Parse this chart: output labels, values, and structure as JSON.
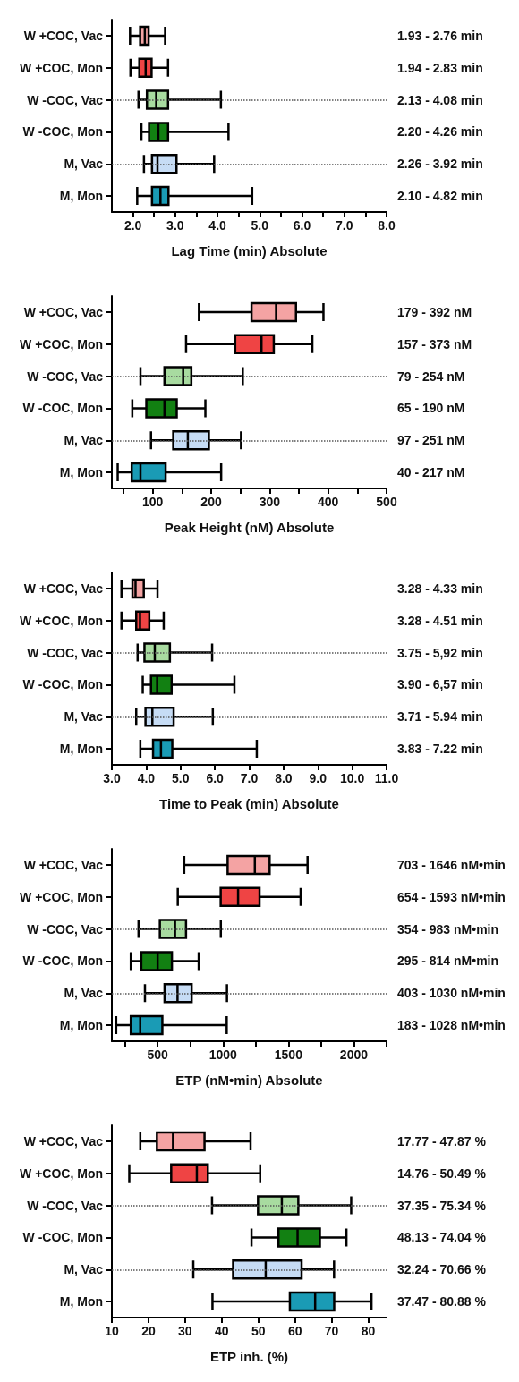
{
  "chart_data": [
    {
      "type": "box",
      "orientation": "horizontal",
      "xlabel": "Lag Time (min) Absolute",
      "categories": [
        "W +COC, Vac",
        "W +COC, Mon",
        "W -COC, Vac",
        "W -COC, Mon",
        "M, Vac",
        "M, Mon"
      ],
      "colors": [
        "#f4a3a3",
        "#ef4444",
        "#a8dba0",
        "#128012",
        "#c6dcf5",
        "#1a9bb5"
      ],
      "boxes": [
        {
          "low": 1.93,
          "q1": 2.17,
          "median": 2.28,
          "q3": 2.37,
          "high": 2.76
        },
        {
          "low": 1.94,
          "q1": 2.15,
          "median": 2.3,
          "q3": 2.44,
          "high": 2.83
        },
        {
          "low": 2.13,
          "q1": 2.33,
          "median": 2.55,
          "q3": 2.83,
          "high": 4.08
        },
        {
          "low": 2.2,
          "q1": 2.38,
          "median": 2.6,
          "q3": 2.83,
          "high": 4.26
        },
        {
          "low": 2.26,
          "q1": 2.45,
          "median": 2.58,
          "q3": 3.03,
          "high": 3.92
        },
        {
          "low": 2.1,
          "q1": 2.45,
          "median": 2.65,
          "q3": 2.84,
          "high": 4.82
        }
      ],
      "value_labels": [
        "1.93 - 2.76 min",
        "1.94 - 2.83 min",
        "2.13 - 4.08 min",
        "2.20 - 4.26 min",
        "2.26 - 3.92 min",
        "2.10 - 4.82 min"
      ],
      "xlim": [
        1.5,
        8
      ],
      "xticks": [
        {
          "value": 2,
          "label": "2.0"
        },
        {
          "value": 2.5,
          "label": null
        },
        {
          "value": 3,
          "label": "3.0"
        },
        {
          "value": 3.5,
          "label": null
        },
        {
          "value": 4,
          "label": "4.0"
        },
        {
          "value": 4.5,
          "label": null
        },
        {
          "value": 5,
          "label": "5.0"
        },
        {
          "value": 5.5,
          "label": null
        },
        {
          "value": 6,
          "label": "6.0"
        },
        {
          "value": 6.5,
          "label": null
        },
        {
          "value": 7,
          "label": "7.0"
        },
        {
          "value": 7.5,
          "label": null
        },
        {
          "value": 8,
          "label": "8.0"
        }
      ]
    },
    {
      "type": "box",
      "orientation": "horizontal",
      "xlabel": "Peak Height (nM) Absolute",
      "categories": [
        "W +COC, Vac",
        "W +COC, Mon",
        "W -COC, Vac",
        "W -COC, Mon",
        "M, Vac",
        "M, Mon"
      ],
      "colors": [
        "#f4a3a3",
        "#ef4444",
        "#a8dba0",
        "#128012",
        "#c6dcf5",
        "#1a9bb5"
      ],
      "boxes": [
        {
          "low": 179,
          "q1": 269,
          "median": 311,
          "q3": 345,
          "high": 392
        },
        {
          "low": 157,
          "q1": 241,
          "median": 286,
          "q3": 307,
          "high": 373
        },
        {
          "low": 79,
          "q1": 120,
          "median": 152,
          "q3": 166,
          "high": 254
        },
        {
          "low": 65,
          "q1": 89,
          "median": 120,
          "q3": 141,
          "high": 190
        },
        {
          "low": 97,
          "q1": 135,
          "median": 160,
          "q3": 196,
          "high": 251
        },
        {
          "low": 40,
          "q1": 64,
          "median": 79,
          "q3": 122,
          "high": 217
        }
      ],
      "value_labels": [
        "179 - 392 nM",
        "157 - 373 nM",
        "79 - 254 nM",
        "65 - 190 nM",
        "97 - 251 nM",
        "40 - 217 nM"
      ],
      "xlim": [
        30,
        500
      ],
      "xticks": [
        {
          "value": 50,
          "label": null
        },
        100,
        {
          "value": 150,
          "label": null
        },
        200,
        {
          "value": 250,
          "label": null
        },
        300,
        {
          "value": 350,
          "label": null
        },
        400,
        {
          "value": 450,
          "label": null
        },
        500
      ]
    },
    {
      "type": "box",
      "orientation": "horizontal",
      "xlabel": "Time to Peak (min) Absolute",
      "categories": [
        "W +COC, Vac",
        "W +COC, Mon",
        "W -COC, Vac",
        "W -COC, Mon",
        "M, Vac",
        "M, Mon"
      ],
      "colors": [
        "#f4a3a3",
        "#ef4444",
        "#a8dba0",
        "#128012",
        "#c6dcf5",
        "#1a9bb5"
      ],
      "boxes": [
        {
          "low": 3.28,
          "q1": 3.6,
          "median": 3.69,
          "q3": 3.93,
          "high": 4.33
        },
        {
          "low": 3.28,
          "q1": 3.71,
          "median": 3.82,
          "q3": 4.09,
          "high": 4.51
        },
        {
          "low": 3.75,
          "q1": 3.95,
          "median": 4.25,
          "q3": 4.69,
          "high": 5.92
        },
        {
          "low": 3.9,
          "q1": 4.14,
          "median": 4.32,
          "q3": 4.74,
          "high": 6.57
        },
        {
          "low": 3.71,
          "q1": 3.98,
          "median": 4.18,
          "q3": 4.8,
          "high": 5.94
        },
        {
          "low": 3.83,
          "q1": 4.2,
          "median": 4.43,
          "q3": 4.76,
          "high": 7.22
        }
      ],
      "value_labels": [
        "3.28 - 4.33 min",
        "3.28 - 4.51 min",
        "3.75 - 5,92 min",
        "3.90 - 6,57 min",
        "3.71 - 5.94 min",
        "3.83 - 7.22 min"
      ],
      "xlim": [
        3,
        11
      ],
      "xticks": [
        {
          "value": 3,
          "label": "3.0"
        },
        {
          "value": 4,
          "label": "4.0"
        },
        {
          "value": 5,
          "label": "5.0"
        },
        {
          "value": 6,
          "label": "6.0"
        },
        {
          "value": 7,
          "label": "7.0"
        },
        {
          "value": 8,
          "label": "8.0"
        },
        {
          "value": 9,
          "label": "9.0"
        },
        {
          "value": 10,
          "label": "10.0"
        },
        {
          "value": 11,
          "label": "11.0"
        }
      ]
    },
    {
      "type": "box",
      "orientation": "horizontal",
      "xlabel": "ETP (nM•min) Absolute",
      "categories": [
        "W +COC, Vac",
        "W +COC, Mon",
        "W -COC, Vac",
        "W -COC, Mon",
        "M, Vac",
        "M, Mon"
      ],
      "colors": [
        "#f4a3a3",
        "#ef4444",
        "#a8dba0",
        "#128012",
        "#c6dcf5",
        "#1a9bb5"
      ],
      "boxes": [
        {
          "low": 703,
          "q1": 1035,
          "median": 1243,
          "q3": 1356,
          "high": 1646
        },
        {
          "low": 654,
          "q1": 982,
          "median": 1115,
          "q3": 1279,
          "high": 1593
        },
        {
          "low": 354,
          "q1": 517,
          "median": 633,
          "q3": 717,
          "high": 983
        },
        {
          "low": 295,
          "q1": 375,
          "median": 500,
          "q3": 609,
          "high": 814
        },
        {
          "low": 403,
          "q1": 553,
          "median": 652,
          "q3": 760,
          "high": 1030
        },
        {
          "low": 183,
          "q1": 295,
          "median": 367,
          "q3": 536,
          "high": 1028
        }
      ],
      "value_labels": [
        "703 - 1646 nM•min",
        "654 - 1593 nM•min",
        "354 - 983 nM•min",
        "295 - 814 nM•min",
        "403 - 1030 nM•min",
        "183 - 1028 nM•min"
      ],
      "xlim": [
        150,
        2250
      ],
      "xticks": [
        {
          "value": 250,
          "label": null
        },
        500,
        {
          "value": 750,
          "label": null
        },
        1000,
        {
          "value": 1250,
          "label": null
        },
        1500,
        {
          "value": 1750,
          "label": null
        },
        2000,
        {
          "value": 2250,
          "label": null
        }
      ]
    },
    {
      "type": "box",
      "orientation": "horizontal",
      "xlabel": "ETP inh. (%)",
      "categories": [
        "W +COC, Vac",
        "W +COC, Mon",
        "W -COC, Vac",
        "W -COC, Mon",
        "M, Vac",
        "M, Mon"
      ],
      "colors": [
        "#f4a3a3",
        "#ef4444",
        "#a8dba0",
        "#128012",
        "#c6dcf5",
        "#1a9bb5"
      ],
      "boxes": [
        {
          "low": 17.77,
          "q1": 22.3,
          "median": 26.7,
          "q3": 35.3,
          "high": 47.87
        },
        {
          "low": 14.76,
          "q1": 26.2,
          "median": 33.2,
          "q3": 36.2,
          "high": 50.49
        },
        {
          "low": 37.35,
          "q1": 49.9,
          "median": 56.4,
          "q3": 60.9,
          "high": 75.34
        },
        {
          "low": 48.13,
          "q1": 55.5,
          "median": 60.7,
          "q3": 66.8,
          "high": 74.04
        },
        {
          "low": 32.24,
          "q1": 43.1,
          "median": 52,
          "q3": 61.8,
          "high": 70.66
        },
        {
          "low": 37.47,
          "q1": 58.6,
          "median": 65.5,
          "q3": 70.7,
          "high": 80.88
        }
      ],
      "value_labels": [
        "17.77 - 47.87 %",
        "14.76 - 50.49 %",
        "37.35 - 75.34 %",
        "48.13 - 74.04 %",
        "32.24 - 70.66 %",
        "37.47 - 80.88 %"
      ],
      "xlim": [
        10,
        85
      ],
      "xticks": [
        10,
        20,
        30,
        40,
        50,
        60,
        70,
        80
      ]
    }
  ]
}
